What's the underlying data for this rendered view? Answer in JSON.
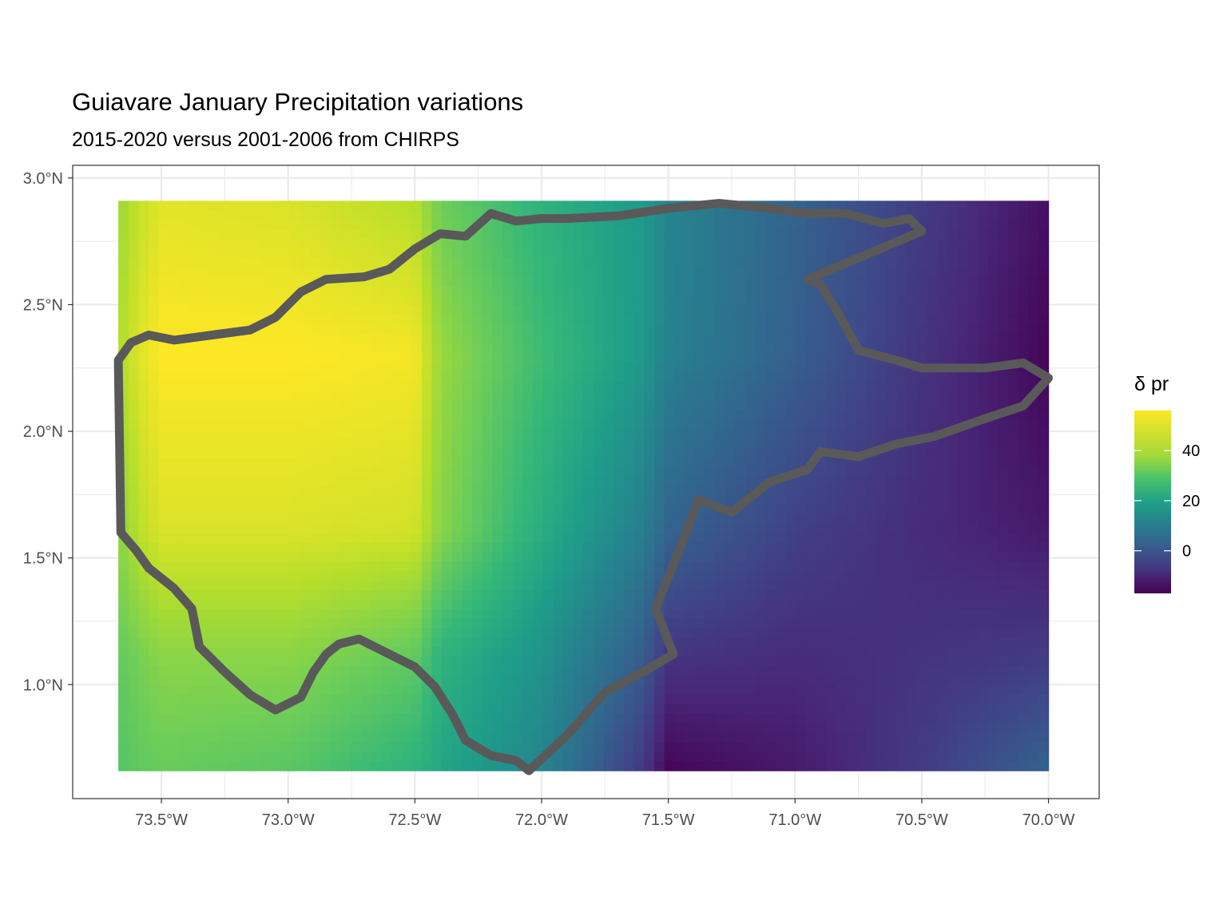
{
  "title": "Guiavare January Precipitation variations",
  "subtitle": "2015-2020 versus 2001-2006 from CHIRPS",
  "x_tick_labels": [
    "73.5°W",
    "73.0°W",
    "72.5°W",
    "72.0°W",
    "71.5°W",
    "71.0°W",
    "70.5°W",
    "70.0°W"
  ],
  "y_tick_labels": [
    "3.0°N",
    "2.5°N",
    "2.0°N",
    "1.5°N",
    "1.0°N"
  ],
  "legend": {
    "title": "δ pr",
    "ticks": [
      "40",
      "20",
      "0"
    ]
  },
  "colors": {
    "boundary": "#595959",
    "grid": "#ebebeb",
    "panel_border": "#333333",
    "scale_low": "#440154",
    "scale_mid": "#21908c",
    "scale_high": "#fde725"
  },
  "chart_data": {
    "type": "heatmap",
    "xlim": [
      -73.85,
      -69.8
    ],
    "ylim": [
      0.55,
      3.05
    ],
    "x_ticks": [
      -73.5,
      -73.0,
      -72.5,
      -72.0,
      -71.5,
      -71.0,
      -70.5,
      -70.0
    ],
    "y_ticks": [
      3.0,
      2.5,
      2.0,
      1.5,
      1.0
    ],
    "raster_extent": {
      "lon": [
        -73.67,
        -70.0
      ],
      "lat": [
        0.66,
        2.91
      ]
    },
    "value_range": [
      -17,
      56
    ],
    "legend_breaks": [
      40,
      20,
      0
    ],
    "grid": true,
    "legend_position": "right",
    "field_columns_lon": [
      -73.67,
      -73.58,
      -73.5,
      -73.0,
      -72.5,
      -72.4,
      -72.0,
      -71.6,
      -71.5,
      -71.0,
      -70.5,
      -70.0
    ],
    "field_values": [
      {
        "lat": 2.91,
        "values": [
          45,
          50,
          53,
          52,
          48,
          40,
          30,
          22,
          16,
          6,
          -4,
          -14
        ]
      },
      {
        "lat": 2.3,
        "values": [
          47,
          53,
          56,
          56,
          55,
          45,
          33,
          22,
          15,
          5,
          -6,
          -16
        ]
      },
      {
        "lat": 1.6,
        "values": [
          43,
          49,
          52,
          52,
          51,
          43,
          28,
          14,
          6,
          -3,
          -8,
          -12
        ]
      },
      {
        "lat": 1.1,
        "values": [
          38,
          41,
          43,
          43,
          38,
          30,
          20,
          4,
          -6,
          -8,
          -6,
          -4
        ]
      },
      {
        "lat": 0.66,
        "values": [
          36,
          38,
          39,
          37,
          30,
          26,
          16,
          -5,
          -16,
          -12,
          -4,
          6
        ]
      }
    ],
    "boundary_polygon": [
      [
        -73.67,
        2.28
      ],
      [
        -73.66,
        1.6
      ],
      [
        -73.6,
        1.53
      ],
      [
        -73.55,
        1.46
      ],
      [
        -73.45,
        1.38
      ],
      [
        -73.38,
        1.3
      ],
      [
        -73.35,
        1.15
      ],
      [
        -73.25,
        1.05
      ],
      [
        -73.15,
        0.96
      ],
      [
        -73.05,
        0.9
      ],
      [
        -72.95,
        0.95
      ],
      [
        -72.9,
        1.05
      ],
      [
        -72.85,
        1.12
      ],
      [
        -72.8,
        1.16
      ],
      [
        -72.72,
        1.18
      ],
      [
        -72.6,
        1.12
      ],
      [
        -72.5,
        1.07
      ],
      [
        -72.42,
        0.99
      ],
      [
        -72.35,
        0.88
      ],
      [
        -72.3,
        0.78
      ],
      [
        -72.2,
        0.72
      ],
      [
        -72.1,
        0.7
      ],
      [
        -72.05,
        0.66
      ],
      [
        -71.9,
        0.8
      ],
      [
        -71.75,
        0.97
      ],
      [
        -71.6,
        1.05
      ],
      [
        -71.48,
        1.12
      ],
      [
        -71.55,
        1.3
      ],
      [
        -71.45,
        1.55
      ],
      [
        -71.38,
        1.73
      ],
      [
        -71.25,
        1.68
      ],
      [
        -71.1,
        1.8
      ],
      [
        -70.95,
        1.85
      ],
      [
        -70.9,
        1.92
      ],
      [
        -70.75,
        1.9
      ],
      [
        -70.6,
        1.95
      ],
      [
        -70.45,
        1.98
      ],
      [
        -70.25,
        2.05
      ],
      [
        -70.1,
        2.1
      ],
      [
        -70.0,
        2.21
      ],
      [
        -70.1,
        2.27
      ],
      [
        -70.25,
        2.25
      ],
      [
        -70.5,
        2.25
      ],
      [
        -70.6,
        2.28
      ],
      [
        -70.75,
        2.32
      ],
      [
        -70.82,
        2.45
      ],
      [
        -70.9,
        2.58
      ],
      [
        -70.95,
        2.6
      ],
      [
        -70.5,
        2.79
      ],
      [
        -70.55,
        2.84
      ],
      [
        -70.65,
        2.82
      ],
      [
        -70.8,
        2.86
      ],
      [
        -70.95,
        2.86
      ],
      [
        -71.1,
        2.88
      ],
      [
        -71.3,
        2.9
      ],
      [
        -71.5,
        2.88
      ],
      [
        -71.7,
        2.85
      ],
      [
        -71.9,
        2.84
      ],
      [
        -72.0,
        2.84
      ],
      [
        -72.1,
        2.83
      ],
      [
        -72.2,
        2.86
      ],
      [
        -72.3,
        2.77
      ],
      [
        -72.4,
        2.78
      ],
      [
        -72.5,
        2.72
      ],
      [
        -72.6,
        2.64
      ],
      [
        -72.7,
        2.61
      ],
      [
        -72.85,
        2.6
      ],
      [
        -72.95,
        2.55
      ],
      [
        -73.05,
        2.45
      ],
      [
        -73.15,
        2.4
      ],
      [
        -73.3,
        2.38
      ],
      [
        -73.45,
        2.36
      ],
      [
        -73.55,
        2.38
      ],
      [
        -73.62,
        2.35
      ],
      [
        -73.67,
        2.28
      ]
    ]
  }
}
